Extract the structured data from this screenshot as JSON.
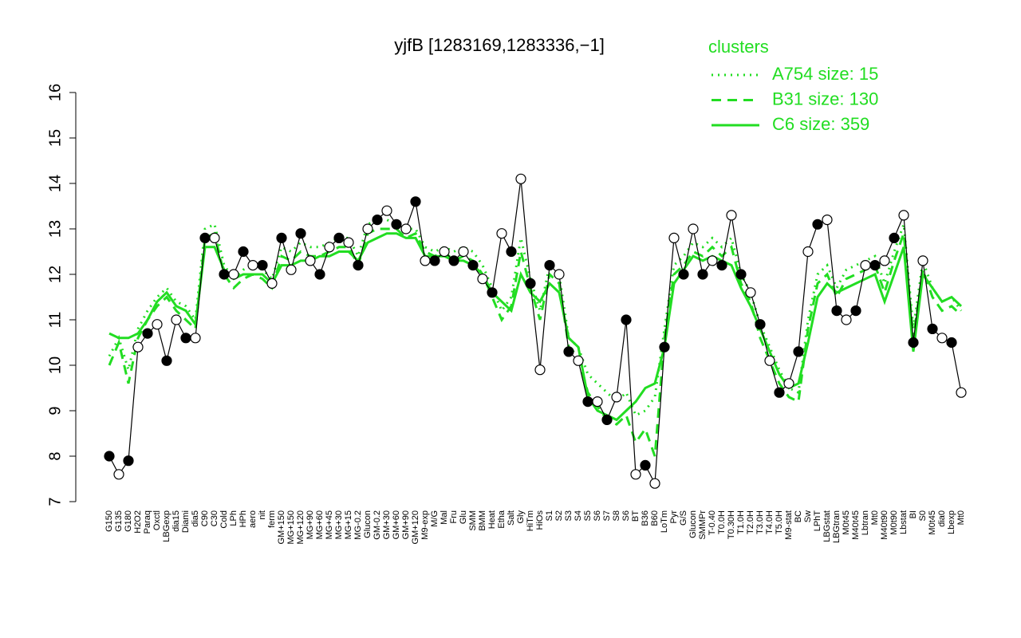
{
  "chart_data": {
    "type": "line",
    "title": "yjfB [1283169,1283336,−1]",
    "legend_title": "clusters",
    "legend": "top-right",
    "color": "#000000",
    "ylim": [
      7,
      16
    ],
    "yticks": [
      7,
      8,
      9,
      10,
      11,
      12,
      13,
      14,
      15,
      16
    ],
    "categories": [
      "G150",
      "G135",
      "G180",
      "H2O2",
      "Paraq",
      "Oxctl",
      "LBGexp",
      "dia15",
      "Diami",
      "dia5",
      "C90",
      "C30",
      "Cold",
      "LPh",
      "HPh",
      "aero",
      "nit",
      "ferm",
      "GM+150",
      "MG+150",
      "MG+120",
      "MG+90",
      "MG+60",
      "MG+45",
      "MG+30",
      "MG+15",
      "MG-0.2",
      "Glucon",
      "GM-0.2",
      "GM+30",
      "GM+60",
      "GM+90",
      "GM+120",
      "M9-exp",
      "M/G",
      "Mal",
      "Fru",
      "Glu",
      "SMM",
      "BMM",
      "Heat",
      "Etha",
      "Salt",
      "Gly",
      "HiTm",
      "HiOs",
      "S1",
      "S2",
      "S3",
      "S4",
      "S5",
      "S6",
      "S7",
      "S8",
      "S6",
      "BT",
      "B36",
      "B60",
      "LoTm",
      "Pyr",
      "G/S",
      "Glucon",
      "SMMPr",
      "T-0.40",
      "T0.0H",
      "T0.30H",
      "T1.0H",
      "T2.0H",
      "T3.0H",
      "T4.0H",
      "T5.0H",
      "M9-stat",
      "BC",
      "Sw",
      "LPhT",
      "LBGstat",
      "LBGtran",
      "M0t45",
      "M40t45",
      "Lbtran",
      "Mt0",
      "M40t90",
      "M0t90",
      "Lbstat",
      "BI",
      "S0",
      "M0t45",
      "dia0",
      "Lbexp",
      "Mt0"
    ],
    "values": [
      8.0,
      7.6,
      7.9,
      10.4,
      10.7,
      10.9,
      10.1,
      11.0,
      10.6,
      10.6,
      12.8,
      12.8,
      12.0,
      12.0,
      12.5,
      12.2,
      12.2,
      11.8,
      12.8,
      12.1,
      12.9,
      12.3,
      12.0,
      12.6,
      12.8,
      12.7,
      12.2,
      13.0,
      13.2,
      13.4,
      13.1,
      13.0,
      13.6,
      12.3,
      12.3,
      12.5,
      12.3,
      12.5,
      12.2,
      11.9,
      11.6,
      12.9,
      12.5,
      14.1,
      11.8,
      9.9,
      12.2,
      12.0,
      10.3,
      10.1,
      9.2,
      9.2,
      8.8,
      9.3,
      11.0,
      7.6,
      7.8,
      7.4,
      10.4,
      12.8,
      12.0,
      13.0,
      12.0,
      12.3,
      12.2,
      13.3,
      12.0,
      11.6,
      10.9,
      10.1,
      9.4,
      9.6,
      10.3,
      12.5,
      13.1,
      13.2,
      11.2,
      11.0,
      11.2,
      12.2,
      12.2,
      12.3,
      12.8,
      13.3,
      10.5,
      12.3,
      10.8,
      10.6,
      10.5,
      9.4
    ],
    "series": [
      {
        "name": "A754 size: 15",
        "color": "#22dd22",
        "linestyle": "dotted",
        "values": [
          10.2,
          10.6,
          9.9,
          10.8,
          11.2,
          11.5,
          11.7,
          11.4,
          11.3,
          11.0,
          13.0,
          13.1,
          12.2,
          11.9,
          12.1,
          12.2,
          12.1,
          11.9,
          12.6,
          12.5,
          12.7,
          12.6,
          12.6,
          12.7,
          12.8,
          12.8,
          12.4,
          13.1,
          13.2,
          13.2,
          13.1,
          13.0,
          13.0,
          12.6,
          12.5,
          12.6,
          12.5,
          12.6,
          12.5,
          12.2,
          11.7,
          11.2,
          11.5,
          12.8,
          11.9,
          11.2,
          12.2,
          12.0,
          10.6,
          10.4,
          9.8,
          9.6,
          9.4,
          9.2,
          9.4,
          8.9,
          9.0,
          9.3,
          10.8,
          12.2,
          12.4,
          12.7,
          12.6,
          12.8,
          12.6,
          12.8,
          12.0,
          11.6,
          10.9,
          10.4,
          9.9,
          9.5,
          9.4,
          11.0,
          12.0,
          12.2,
          11.7,
          12.1,
          12.2,
          12.3,
          12.4,
          11.8,
          12.5,
          13.1,
          10.8,
          12.3,
          11.7,
          11.4,
          11.5,
          11.2
        ]
      },
      {
        "name": "B31 size: 130",
        "color": "#22dd22",
        "linestyle": "dashed",
        "values": [
          10.0,
          10.5,
          9.6,
          10.6,
          11.0,
          11.3,
          11.5,
          11.2,
          11.0,
          10.8,
          12.8,
          12.9,
          12.0,
          11.7,
          11.9,
          12.0,
          11.9,
          11.7,
          12.4,
          12.3,
          12.5,
          12.4,
          12.4,
          12.5,
          12.6,
          12.6,
          12.2,
          12.9,
          13.0,
          13.0,
          13.0,
          12.8,
          12.9,
          12.5,
          12.4,
          12.5,
          12.3,
          12.4,
          12.3,
          12.0,
          11.5,
          11.0,
          11.3,
          12.5,
          11.7,
          11.0,
          12.0,
          11.8,
          10.4,
          10.2,
          9.4,
          9.1,
          8.8,
          8.7,
          8.9,
          8.3,
          8.6,
          8.0,
          10.6,
          12.0,
          12.2,
          12.5,
          12.4,
          12.6,
          12.4,
          12.6,
          11.8,
          11.4,
          10.6,
          10.1,
          9.6,
          9.3,
          9.2,
          10.8,
          11.8,
          12.0,
          11.5,
          11.9,
          12.0,
          12.1,
          12.2,
          11.6,
          12.3,
          12.9,
          10.6,
          12.1,
          11.5,
          11.2,
          11.3,
          11.1
        ]
      },
      {
        "name": "C6 size: 359",
        "color": "#22dd22",
        "linestyle": "solid",
        "values": [
          10.7,
          10.6,
          10.6,
          10.7,
          11.0,
          11.4,
          11.6,
          11.3,
          11.2,
          10.9,
          12.6,
          12.6,
          12.1,
          11.9,
          12.0,
          12.0,
          12.0,
          11.8,
          12.2,
          12.2,
          12.3,
          12.3,
          12.4,
          12.4,
          12.5,
          12.5,
          12.3,
          12.7,
          12.8,
          12.9,
          12.9,
          12.8,
          12.8,
          12.4,
          12.4,
          12.4,
          12.3,
          12.3,
          12.2,
          12.0,
          11.6,
          11.4,
          11.2,
          12.0,
          11.6,
          11.4,
          11.8,
          11.6,
          10.6,
          10.4,
          9.3,
          9.0,
          8.9,
          8.8,
          9.0,
          9.2,
          9.5,
          9.6,
          10.4,
          11.8,
          12.1,
          12.4,
          12.3,
          12.4,
          12.3,
          12.2,
          11.7,
          11.3,
          10.8,
          10.3,
          9.8,
          9.5,
          9.6,
          10.5,
          11.5,
          11.8,
          11.6,
          11.7,
          11.8,
          11.9,
          12.0,
          11.4,
          12.0,
          12.6,
          10.3,
          12.0,
          11.7,
          11.4,
          11.5,
          11.3
        ]
      }
    ]
  }
}
